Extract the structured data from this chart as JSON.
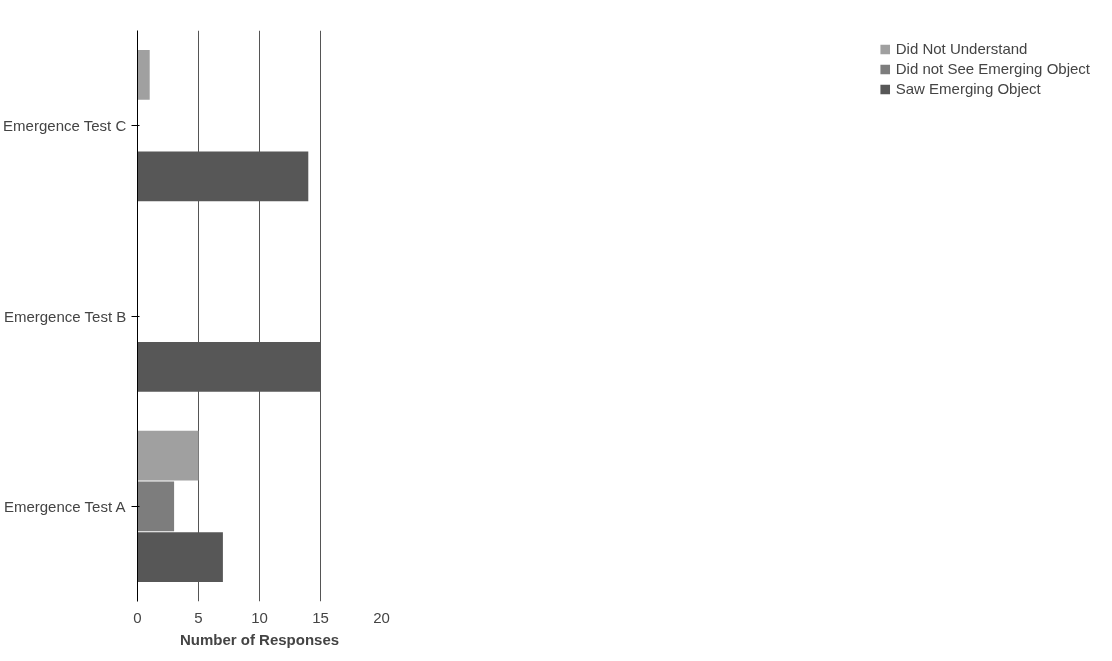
{
  "chart_data": {
    "type": "bar",
    "orientation": "horizontal",
    "xlabel": "Number of Responses",
    "categories": [
      "Emergence Test C",
      "Emergence Test B",
      "Emergence Test A"
    ],
    "series": [
      {
        "name": "Did Not Understand",
        "color": "#a0a0a0",
        "values": [
          1,
          0,
          5
        ]
      },
      {
        "name": "Did not See Emerging Object",
        "color": "#7d7d7d",
        "values": [
          0,
          0,
          3
        ]
      },
      {
        "name": "Saw Emerging Object",
        "color": "#575757",
        "values": [
          14,
          15,
          7
        ]
      }
    ],
    "xlim": [
      0,
      20
    ],
    "xticks": [
      0,
      5,
      10,
      15,
      20
    ],
    "grid": "x",
    "legend": "right"
  }
}
